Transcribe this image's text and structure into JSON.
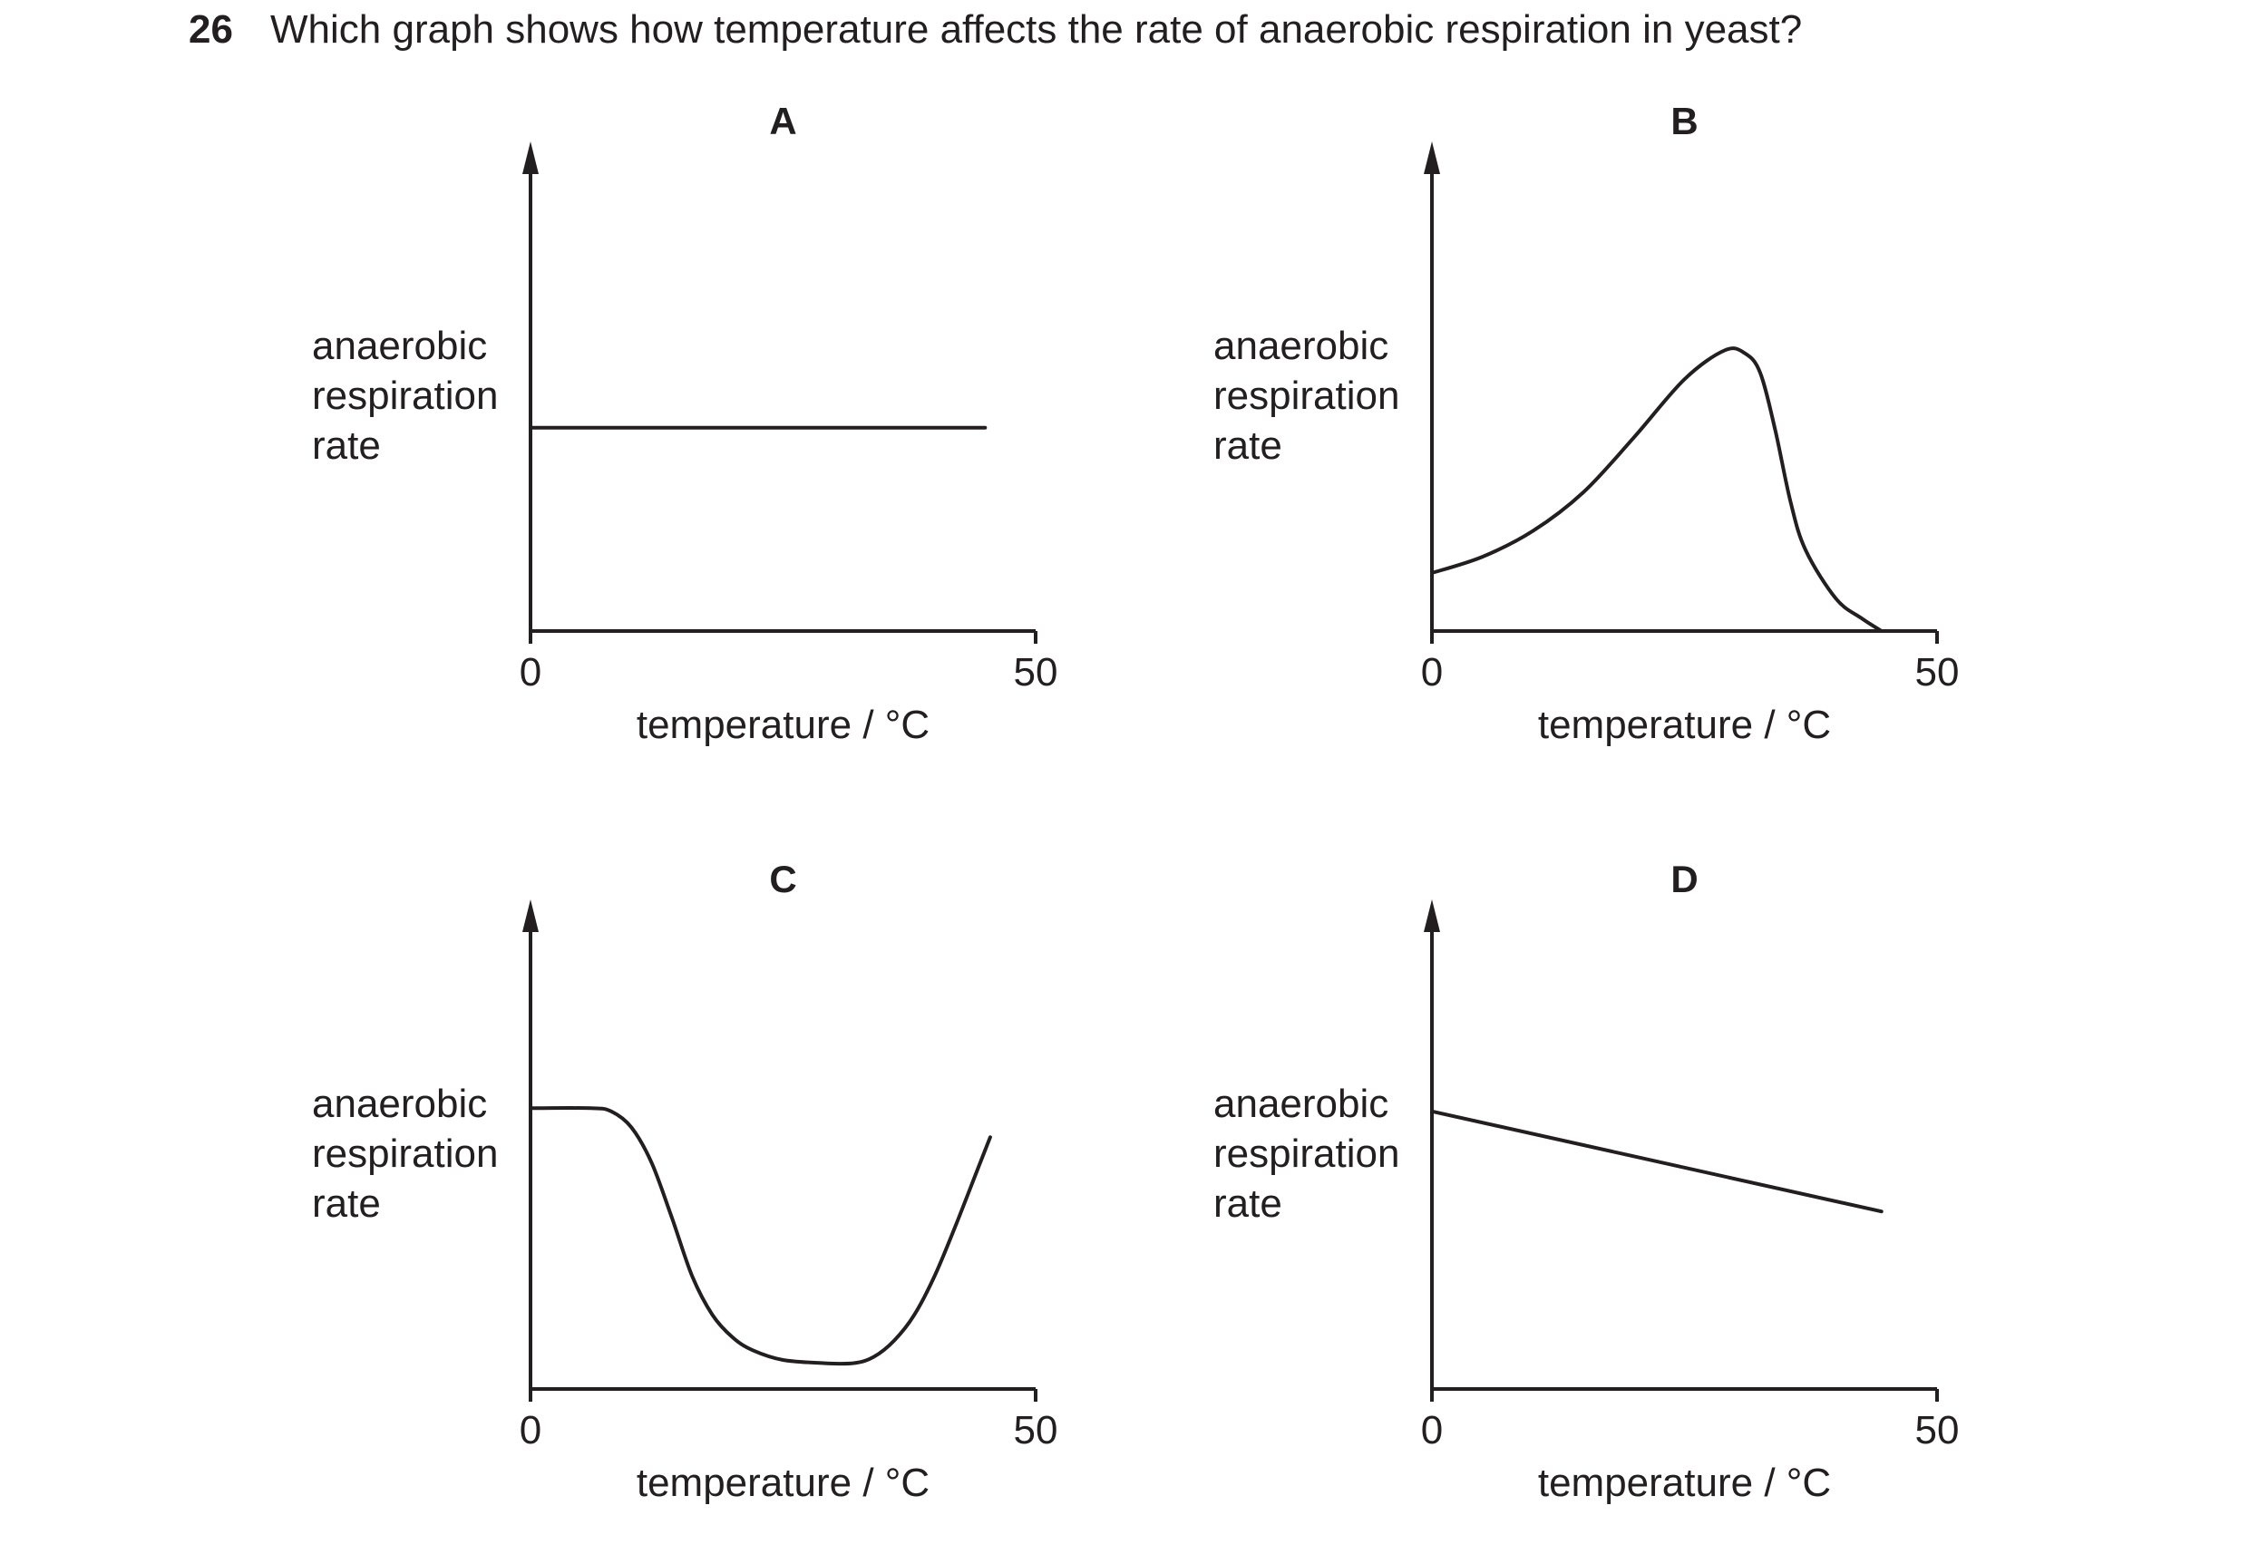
{
  "question": {
    "number": "26",
    "text": "Which graph shows how temperature affects the rate of anaerobic respiration in yeast?"
  },
  "chart_data": [
    {
      "type": "line",
      "title": "A",
      "ylabel_lines": [
        "anaerobic",
        "respiration",
        "rate"
      ],
      "xlabel": "temperature / °C",
      "xlim": [
        0,
        50
      ],
      "x_ticks": [
        "0",
        "50"
      ],
      "ylim": [
        0,
        1
      ],
      "grid": false,
      "x": [
        0,
        45
      ],
      "y": [
        0.63,
        0.63
      ]
    },
    {
      "type": "line",
      "title": "B",
      "ylabel_lines": [
        "anaerobic",
        "respiration",
        "rate"
      ],
      "xlabel": "temperature / °C",
      "xlim": [
        0,
        50
      ],
      "x_ticks": [
        "0",
        "50"
      ],
      "ylim": [
        0,
        1
      ],
      "grid": false,
      "x": [
        0,
        5,
        10,
        15,
        20,
        25,
        29,
        31,
        32.5,
        34,
        35.5,
        37,
        40,
        42.5,
        44.5
      ],
      "y": [
        0.18,
        0.23,
        0.31,
        0.43,
        0.6,
        0.78,
        0.87,
        0.86,
        0.8,
        0.62,
        0.4,
        0.25,
        0.1,
        0.04,
        0.0
      ]
    },
    {
      "type": "line",
      "title": "C",
      "ylabel_lines": [
        "anaerobic",
        "respiration",
        "rate"
      ],
      "xlabel": "temperature / °C",
      "xlim": [
        0,
        50
      ],
      "x_ticks": [
        "0",
        "50"
      ],
      "ylim": [
        0,
        1
      ],
      "grid": false,
      "x": [
        0,
        6,
        8,
        10,
        12,
        14,
        16,
        18,
        20,
        22,
        25,
        29,
        32,
        34,
        36,
        38,
        40,
        42,
        44,
        45.5
      ],
      "y": [
        0.87,
        0.87,
        0.86,
        0.81,
        0.7,
        0.53,
        0.35,
        0.23,
        0.16,
        0.12,
        0.09,
        0.08,
        0.08,
        0.1,
        0.15,
        0.23,
        0.35,
        0.5,
        0.66,
        0.78
      ]
    },
    {
      "type": "line",
      "title": "D",
      "ylabel_lines": [
        "anaerobic",
        "respiration",
        "rate"
      ],
      "xlabel": "temperature / °C",
      "xlim": [
        0,
        50
      ],
      "x_ticks": [
        "0",
        "50"
      ],
      "ylim": [
        0,
        1
      ],
      "grid": false,
      "x": [
        0,
        44.5
      ],
      "y": [
        0.86,
        0.55
      ]
    }
  ]
}
